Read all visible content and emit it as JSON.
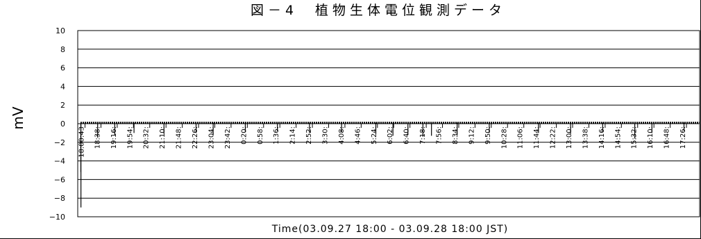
{
  "chart_data": {
    "type": "line",
    "title": "図－4　植物生体電位観測データ",
    "xlabel": "Time(03.09.27 18:00 - 03.09.28 18:00 JST)",
    "ylabel": "mV",
    "ylim": [
      -10,
      10
    ],
    "yticks": [
      "10",
      "8",
      "6",
      "4",
      "2",
      "0",
      "-2",
      "-4",
      "-6",
      "-8",
      "-10"
    ],
    "grid": true,
    "legend": "none",
    "x_tick_labels": [
      "18:00:43",
      "18:38:",
      "19:16:",
      "19:54:",
      "20:32:",
      "21:10:",
      "21:48:",
      "22:26:",
      "23:04:",
      "23:42:",
      "0:20:",
      "0:58:",
      "1:36:",
      "2:14:",
      "2:52:",
      "3:30:",
      "4:08:",
      "4:46:",
      "5:24:",
      "6:02:",
      "6:40:",
      "7:18:",
      "7:56:",
      "8:34:",
      "9:12:",
      "9:50:",
      "10:28:",
      "11:06:",
      "11:44:",
      "12:22:",
      "13:00:",
      "13:38:",
      "14:16:",
      "14:54:",
      "15:32:",
      "16:10:",
      "16:48:",
      "17:26:"
    ],
    "baseline_value": 0.1,
    "spikes": [
      {
        "x": "18:00:43",
        "y": -5.2
      },
      {
        "x": "18:01",
        "y": -9.0
      },
      {
        "x": "18:40",
        "y": -1.5
      },
      {
        "x": "19:20",
        "y": -1.2
      },
      {
        "x": "20:05",
        "y": -1.0
      },
      {
        "x": "21:15",
        "y": -1.1
      },
      {
        "x": "22:30",
        "y": -1.0
      },
      {
        "x": "23:10",
        "y": -1.2
      },
      {
        "x": "0:25",
        "y": -0.9
      },
      {
        "x": "1:40",
        "y": -0.8
      },
      {
        "x": "2:55",
        "y": -1.0
      },
      {
        "x": "4:10",
        "y": -0.9
      },
      {
        "x": "5:30",
        "y": -1.1
      },
      {
        "x": "6:10",
        "y": -1.3
      },
      {
        "x": "6:45",
        "y": -1.2
      },
      {
        "x": "7:20",
        "y": -1.4
      },
      {
        "x": "7:40",
        "y": -1.3
      },
      {
        "x": "8:40",
        "y": -1.2
      },
      {
        "x": "9:55",
        "y": -1.0
      },
      {
        "x": "11:50",
        "y": -1.0
      },
      {
        "x": "13:05",
        "y": -1.1
      },
      {
        "x": "14:20",
        "y": -0.9
      },
      {
        "x": "15:35",
        "y": -1.6
      },
      {
        "x": "16:15",
        "y": -1.0
      },
      {
        "x": "17:30",
        "y": -0.8
      }
    ]
  }
}
